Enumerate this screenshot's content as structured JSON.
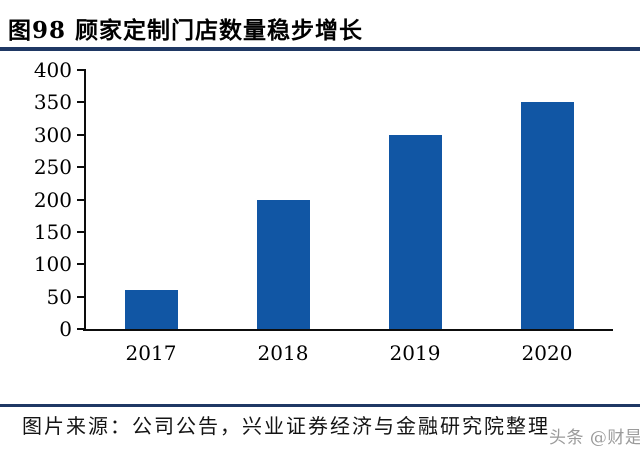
{
  "header": {
    "title": "图98 顾家定制门店数量稳步增长",
    "rule_color": "#1F3864"
  },
  "chart_data": {
    "type": "bar",
    "title": "顾家定制门店数量稳步增长",
    "categories": [
      "2017",
      "2018",
      "2019",
      "2020"
    ],
    "values": [
      60,
      200,
      300,
      350
    ],
    "xlabel": "",
    "ylabel": "",
    "ylim": [
      0,
      400
    ],
    "ytick_step": 50,
    "yticks": [
      0,
      50,
      100,
      150,
      200,
      250,
      300,
      350,
      400
    ],
    "grid": false,
    "legend": "none",
    "bar_color": "#1156A4",
    "axis_color": "#0d0d0d"
  },
  "footer": {
    "source": "图片来源：公司公告，兴业证券经济与金融研究院整理",
    "rule_color": "#1F3864",
    "watermark": "头条 @财是"
  }
}
